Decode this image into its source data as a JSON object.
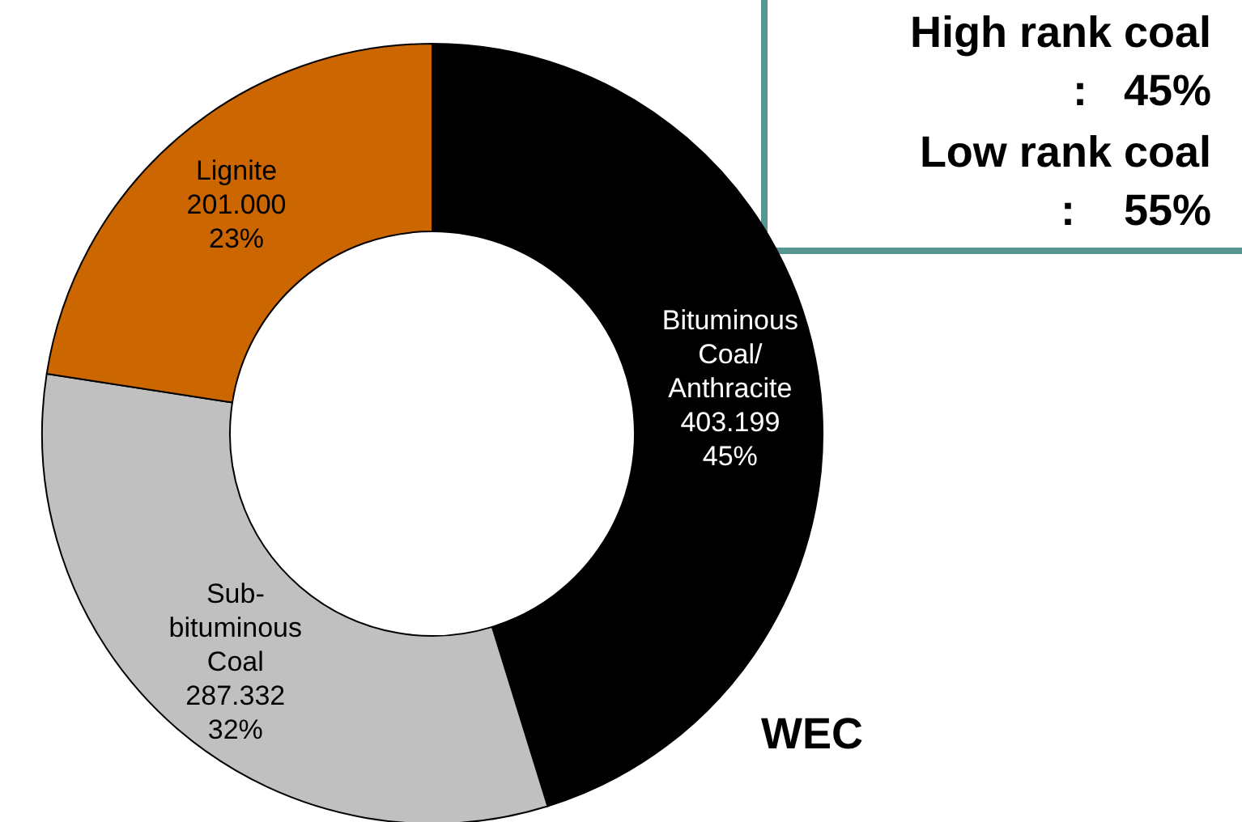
{
  "chart_data": {
    "type": "donut",
    "categories": [
      "Bituminous\nCoal/\nAnthracite",
      "Sub-\nbituminous\nCoal",
      "Lignite"
    ],
    "values": [
      403.199,
      287.332,
      201.0
    ],
    "value_labels": [
      "403.199\n45%",
      "287.332\n32%",
      "201.000\n23%"
    ],
    "colors": [
      "#000000",
      "#c0c0c0",
      "#cc6600"
    ],
    "annotations": [
      "High rank coal\n:   45%",
      "Low rank coal\n:    55%",
      "WEC"
    ],
    "legend": false
  }
}
